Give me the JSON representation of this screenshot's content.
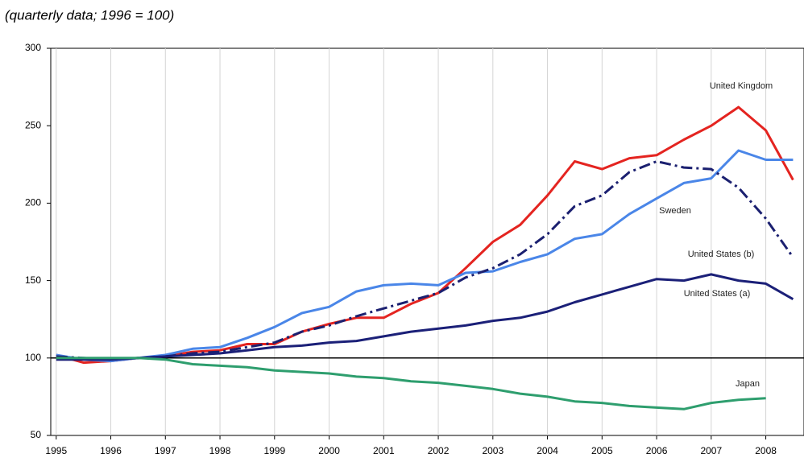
{
  "chart_data": {
    "type": "line",
    "subtitle": "(quarterly data; 1996 = 100)",
    "x": [
      1995,
      1995.5,
      1996,
      1996.5,
      1997,
      1997.5,
      1998,
      1998.5,
      1999,
      1999.5,
      2000,
      2000.5,
      2001,
      2001.5,
      2002,
      2002.5,
      2003,
      2003.5,
      2004,
      2004.5,
      2005,
      2005.5,
      2006,
      2006.5,
      2007,
      2007.5,
      2008,
      2008.5
    ],
    "xlim": [
      1994.9,
      2008.7
    ],
    "xticks": [
      1995,
      1996,
      1997,
      1998,
      1999,
      2000,
      2001,
      2002,
      2003,
      2004,
      2005,
      2006,
      2007,
      2008
    ],
    "ylim": [
      50,
      300
    ],
    "yticks": [
      50,
      100,
      150,
      200,
      250,
      300
    ],
    "hline": 100,
    "grid": true,
    "series": [
      {
        "name": "United Kingdom",
        "color": "#e42420",
        "style": "solid",
        "values": [
          102,
          97,
          98,
          100,
          101,
          104,
          105,
          109,
          109,
          117,
          122,
          126,
          126,
          135,
          142,
          158,
          175,
          186,
          205,
          227,
          222,
          229,
          231,
          241,
          250,
          262,
          247,
          215
        ]
      },
      {
        "name": "Sweden",
        "color": "#4a86e8",
        "style": "solid",
        "values": [
          102,
          99,
          98,
          100,
          102,
          106,
          107,
          113,
          120,
          129,
          133,
          143,
          147,
          148,
          147,
          155,
          156,
          162,
          167,
          177,
          180,
          193,
          203,
          213,
          216,
          234,
          228,
          228
        ]
      },
      {
        "name": "United States (b)",
        "color": "#1b2070",
        "style": "dashdot",
        "values": [
          101,
          100,
          99,
          100,
          101,
          103,
          104,
          107,
          110,
          117,
          121,
          127,
          132,
          137,
          142,
          152,
          158,
          167,
          180,
          198,
          205,
          220,
          227,
          223,
          222,
          210,
          190,
          165
        ]
      },
      {
        "name": "United States (a)",
        "color": "#1b2078",
        "style": "solid",
        "values": [
          99,
          99,
          99,
          100,
          101,
          102,
          103,
          105,
          107,
          108,
          110,
          111,
          114,
          117,
          119,
          121,
          124,
          126,
          130,
          136,
          141,
          146,
          151,
          150,
          154,
          150,
          148,
          138
        ]
      },
      {
        "name": "Japan",
        "color": "#2e9e6e",
        "style": "solid",
        "values": [
          100,
          100,
          100,
          100,
          99,
          96,
          95,
          94,
          92,
          91,
          90,
          88,
          87,
          85,
          84,
          82,
          80,
          77,
          75,
          72,
          71,
          69,
          68,
          67,
          71,
          73,
          74,
          null
        ]
      }
    ]
  }
}
